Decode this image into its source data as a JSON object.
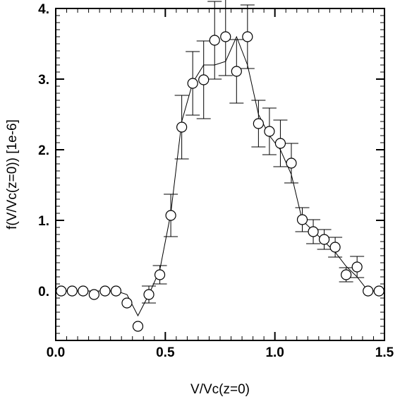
{
  "chart_data": {
    "type": "line",
    "title": "",
    "xlabel": "V/Vc(z=0)",
    "ylabel": "f(V/Vc(z=0)) [1e-6]",
    "xlim": [
      0.0,
      1.5
    ],
    "ylim": [
      -0.7,
      4.0
    ],
    "x_ticks": [
      0.0,
      0.5,
      1.0,
      1.5
    ],
    "x_tick_labels": [
      "0.0",
      "0.5",
      "1.0",
      "1.5"
    ],
    "y_ticks": [
      0.0,
      1.0,
      2.0,
      3.0,
      4.0
    ],
    "y_tick_labels": [
      "0.",
      "1.",
      "2.",
      "3.",
      "4."
    ],
    "grid": false,
    "series": [
      {
        "marker": "open-circle",
        "x": [
          0.025,
          0.075,
          0.125,
          0.175,
          0.225,
          0.275,
          0.325,
          0.375,
          0.425,
          0.475,
          0.525,
          0.575,
          0.625,
          0.675,
          0.725,
          0.775,
          0.825,
          0.875,
          0.925,
          0.975,
          1.025,
          1.075,
          1.125,
          1.175,
          1.225,
          1.275,
          1.325,
          1.375,
          1.425,
          1.475
        ],
        "y": [
          0.0,
          0.0,
          0.0,
          -0.05,
          0.0,
          0.0,
          -0.17,
          -0.5,
          -0.05,
          0.23,
          1.07,
          2.32,
          2.94,
          2.99,
          3.55,
          3.6,
          3.11,
          3.6,
          2.37,
          2.26,
          2.09,
          1.81,
          1.01,
          0.84,
          0.73,
          0.62,
          0.23,
          0.34,
          0.0,
          0.0
        ],
        "error": [
          0.0,
          0.0,
          0.0,
          0.0,
          0.0,
          0.0,
          0.0,
          0.0,
          0.12,
          0.13,
          0.3,
          0.45,
          0.45,
          0.55,
          0.55,
          0.55,
          0.45,
          0.45,
          0.33,
          0.33,
          0.33,
          0.28,
          0.17,
          0.17,
          0.14,
          0.14,
          0.1,
          0.15,
          0.0,
          0.0
        ]
      },
      {
        "marker": "none",
        "x": [
          0.025,
          0.075,
          0.125,
          0.175,
          0.225,
          0.275,
          0.325,
          0.375,
          0.425,
          0.475,
          0.525,
          0.575,
          0.625,
          0.675,
          0.725,
          0.775,
          0.825,
          0.875,
          0.925,
          0.975,
          1.025,
          1.075,
          1.125,
          1.175,
          1.225,
          1.275,
          1.325,
          1.375,
          1.425,
          1.475
        ],
        "y": [
          0.0,
          0.0,
          0.0,
          0.0,
          0.0,
          0.0,
          -0.05,
          -0.35,
          -0.05,
          0.3,
          1.1,
          2.4,
          2.95,
          3.2,
          3.2,
          3.25,
          3.6,
          3.2,
          2.5,
          2.2,
          2.0,
          1.65,
          1.0,
          0.85,
          0.7,
          0.55,
          0.35,
          0.2,
          0.0,
          0.0
        ]
      }
    ]
  }
}
